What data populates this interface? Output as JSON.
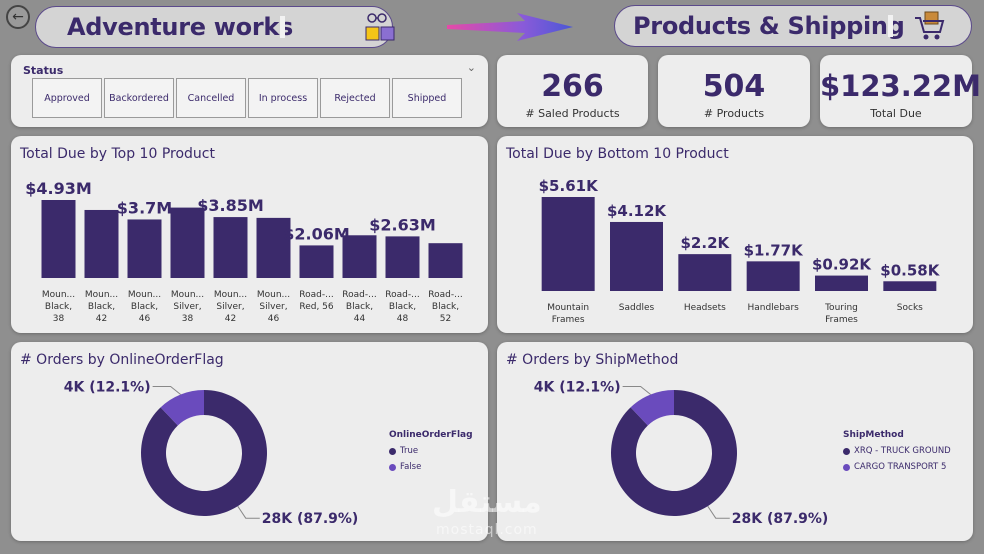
{
  "header": {
    "left_title": "Adventure works",
    "left_icon": "workflow-store-icon",
    "right_title": "Products & Shipping",
    "right_icon": "shopping-cart-icon",
    "back_icon": "back-arrow-icon"
  },
  "status": {
    "label": "Status",
    "options": [
      "Approved",
      "Backordered",
      "Cancelled",
      "In process",
      "Rejected",
      "Shipped"
    ]
  },
  "kpis": [
    {
      "value": "266",
      "label": "# Saled Products"
    },
    {
      "value": "504",
      "label": "# Products"
    },
    {
      "value": "$123.22M",
      "label": "Total Due"
    }
  ],
  "colors": {
    "primary": "#3b2a6b",
    "secondary": "#6a4bbd",
    "card": "#ededed",
    "background": "#8f8f8f"
  },
  "chart_data": [
    {
      "type": "bar",
      "title": "Total Due by Top 10 Product",
      "categories": [
        [
          "Moun...",
          "Black,",
          "38"
        ],
        [
          "Moun...",
          "Black,",
          "42"
        ],
        [
          "Moun...",
          "Black,",
          "46"
        ],
        [
          "Moun...",
          "Silver,",
          "38"
        ],
        [
          "Moun...",
          "Silver,",
          "42"
        ],
        [
          "Moun...",
          "Silver,",
          "46"
        ],
        [
          "Road-...",
          "Red, 56"
        ],
        [
          "Road-...",
          "Black,",
          "44"
        ],
        [
          "Road-...",
          "Black,",
          "48"
        ],
        [
          "Road-...",
          "Black,",
          "52"
        ]
      ],
      "values": [
        4.93,
        4.3,
        3.7,
        4.45,
        3.85,
        3.8,
        2.06,
        2.7,
        2.63,
        2.2
      ],
      "data_labels": [
        "$4.93M",
        "",
        "$3.7M",
        "",
        "$3.85M",
        "",
        "$2.06M",
        "",
        "$2.63M",
        ""
      ],
      "unit": "M"
    },
    {
      "type": "bar",
      "title": "Total Due by Bottom 10 Product",
      "categories": [
        [
          "Mountain",
          "Frames"
        ],
        [
          "Saddles"
        ],
        [
          "Headsets"
        ],
        [
          "Handlebars"
        ],
        [
          "Touring",
          "Frames"
        ],
        [
          "Socks"
        ]
      ],
      "values": [
        5.61,
        4.12,
        2.2,
        1.77,
        0.92,
        0.58
      ],
      "data_labels": [
        "$5.61K",
        "$4.12K",
        "$2.2K",
        "$1.77K",
        "$0.92K",
        "$0.58K"
      ],
      "unit": "K"
    },
    {
      "type": "pie",
      "title": "# Orders by OnlineOrderFlag",
      "legend_title": "OnlineOrderFlag",
      "slices": [
        {
          "name": "True",
          "value": 87.9,
          "label": "28K (87.9%)",
          "color": "#3b2a6b"
        },
        {
          "name": "False",
          "value": 12.1,
          "label": "4K (12.1%)",
          "color": "#6a4bbd"
        }
      ]
    },
    {
      "type": "pie",
      "title": "# Orders by ShipMethod",
      "legend_title": "ShipMethod",
      "slices": [
        {
          "name": "XRQ - TRUCK GROUND",
          "value": 87.9,
          "label": "28K (87.9%)",
          "color": "#3b2a6b"
        },
        {
          "name": "CARGO TRANSPORT 5",
          "value": 12.1,
          "label": "4K (12.1%)",
          "color": "#6a4bbd"
        }
      ]
    }
  ],
  "watermark": {
    "arabic": "مستقل",
    "latin": "mostaql.com"
  }
}
